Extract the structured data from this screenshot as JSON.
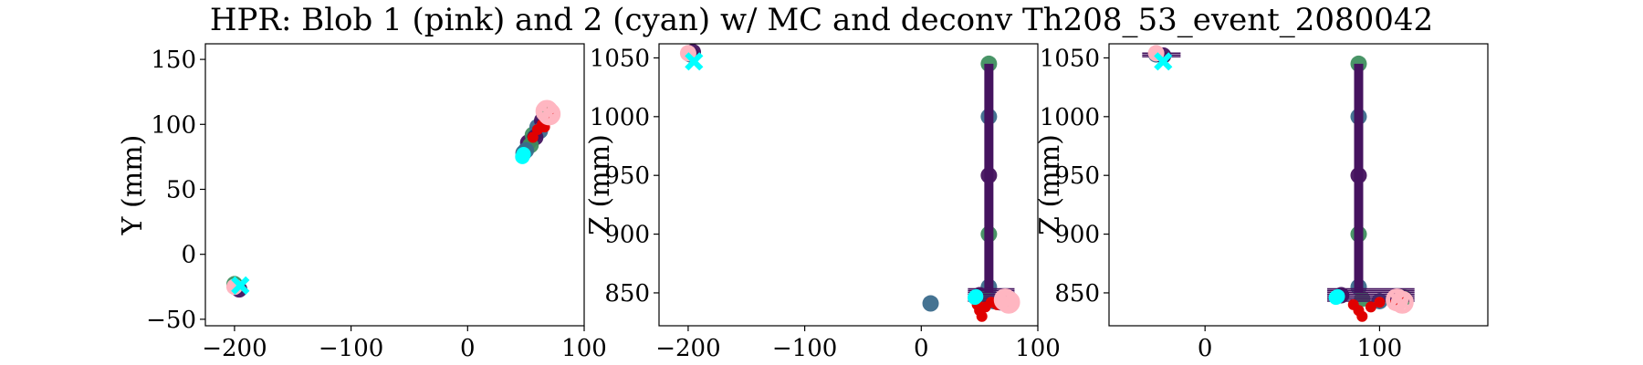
{
  "figure": {
    "title": "HPR: Blob 1 (pink) and 2 (cyan) w/ MC and deconv Th208_53_event_2080042"
  },
  "colors": {
    "track_dark": "#45135f",
    "track_mid": "#3b6b8c",
    "track_green": "#3f8f5f",
    "mc_red": "#e00000",
    "blob1_pink": "#ffb6c1",
    "blob2_cyan": "#00ffff"
  },
  "chart_data": [
    {
      "type": "scatter",
      "panel": "XY",
      "xlabel": "",
      "ylabel": "Y (mm)",
      "xlim": [
        -225,
        100
      ],
      "ylim": [
        -55,
        162
      ],
      "xticks": [
        -200,
        -100,
        0,
        100
      ],
      "xtick_labels": [
        "−200",
        "−100",
        "0",
        "100"
      ],
      "yticks": [
        -50,
        0,
        50,
        100,
        150
      ],
      "ytick_labels": [
        "−50",
        "0",
        "50",
        "100",
        "150"
      ],
      "series": [
        {
          "role": "deconv_track",
          "points": [
            [
              -198,
              -25
            ],
            [
              -196,
              -27
            ],
            [
              -200,
              -23
            ],
            [
              48,
              78
            ],
            [
              52,
              86
            ],
            [
              56,
              92
            ],
            [
              60,
              98
            ],
            [
              64,
              103
            ],
            [
              68,
              108
            ],
            [
              62,
              95
            ],
            [
              58,
              90
            ],
            [
              54,
              84
            ],
            [
              50,
              80
            ]
          ]
        },
        {
          "role": "mc_hits",
          "points": [
            [
              56,
              90
            ],
            [
              60,
              96
            ],
            [
              64,
              100
            ],
            [
              68,
              105
            ],
            [
              70,
              109
            ],
            [
              66,
              98
            ]
          ]
        },
        {
          "name": "Blob 1 (pink)",
          "points": [
            [
              -200,
              -25
            ],
            [
              68,
              110
            ],
            [
              70,
              108
            ]
          ]
        },
        {
          "name": "Blob 2 (cyan)",
          "points": [
            [
              -195,
              -24
            ],
            [
              47,
              75
            ],
            [
              48,
              77
            ]
          ]
        }
      ]
    },
    {
      "type": "scatter",
      "panel": "XZ",
      "xlabel": "",
      "ylabel": "Z (mm)",
      "xlim": [
        -225,
        100
      ],
      "ylim": [
        822,
        1062
      ],
      "xticks": [
        -200,
        -100,
        0,
        100
      ],
      "xtick_labels": [
        "−200",
        "−100",
        "0",
        "100"
      ],
      "yticks": [
        850,
        900,
        950,
        1000,
        1050
      ],
      "ytick_labels": [
        "850",
        "900",
        "950",
        "1000",
        "1050"
      ],
      "series": [
        {
          "role": "deconv_track",
          "points": [
            [
              -198,
              1053
            ],
            [
              -196,
              1055
            ],
            [
              58,
              1045
            ],
            [
              58,
              1000
            ],
            [
              58,
              950
            ],
            [
              58,
              900
            ],
            [
              58,
              855
            ],
            [
              50,
              848
            ],
            [
              55,
              845
            ],
            [
              62,
              843
            ],
            [
              68,
              842
            ],
            [
              72,
              844
            ],
            [
              8,
              841
            ]
          ]
        },
        {
          "role": "mc_hits",
          "points": [
            [
              48,
              840
            ],
            [
              50,
              835
            ],
            [
              52,
              830
            ],
            [
              55,
              838
            ],
            [
              60,
              842
            ],
            [
              65,
              840
            ],
            [
              70,
              843
            ]
          ]
        },
        {
          "name": "Blob 1 (pink)",
          "points": [
            [
              -200,
              1054
            ],
            [
              72,
              844
            ],
            [
              75,
              842
            ]
          ]
        },
        {
          "name": "Blob 2 (cyan)",
          "points": [
            [
              -195,
              1047
            ],
            [
              46,
              846
            ],
            [
              47,
              847
            ]
          ]
        }
      ]
    },
    {
      "type": "scatter",
      "panel": "YZ",
      "xlabel": "",
      "ylabel": "Z (mm)",
      "xlim": [
        -55,
        162
      ],
      "ylim": [
        822,
        1062
      ],
      "xticks": [
        0,
        100
      ],
      "xtick_labels": [
        "0",
        "100"
      ],
      "yticks": [
        850,
        900,
        950,
        1000,
        1050
      ],
      "ytick_labels": [
        "850",
        "900",
        "950",
        "1000",
        "1050"
      ],
      "series": [
        {
          "role": "deconv_track",
          "points": [
            [
              -28,
              1053
            ],
            [
              -24,
              1052
            ],
            [
              88,
              1045
            ],
            [
              88,
              1000
            ],
            [
              88,
              950
            ],
            [
              88,
              900
            ],
            [
              88,
              855
            ],
            [
              78,
              848
            ],
            [
              90,
              845
            ],
            [
              100,
              843
            ],
            [
              110,
              842
            ],
            [
              114,
              846
            ]
          ]
        },
        {
          "role": "mc_hits",
          "points": [
            [
              85,
              840
            ],
            [
              88,
              835
            ],
            [
              90,
              830
            ],
            [
              95,
              838
            ],
            [
              100,
              842
            ],
            [
              108,
              840
            ],
            [
              112,
              843
            ]
          ]
        },
        {
          "name": "Blob 1 (pink)",
          "points": [
            [
              -28,
              1054
            ],
            [
              110,
              844
            ],
            [
              113,
              842
            ]
          ]
        },
        {
          "name": "Blob 2 (cyan)",
          "points": [
            [
              -24,
              1047
            ],
            [
              75,
              846
            ],
            [
              76,
              847
            ]
          ]
        }
      ]
    }
  ]
}
